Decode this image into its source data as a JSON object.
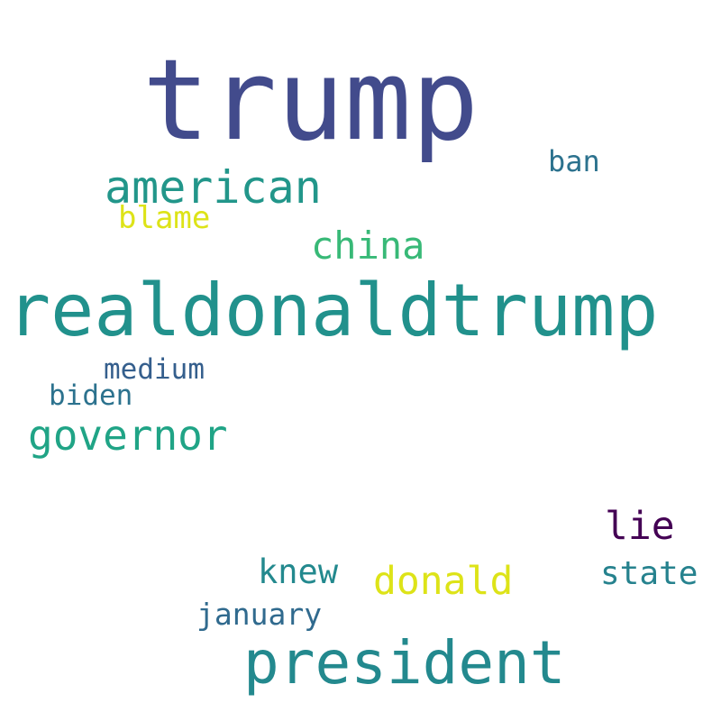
{
  "words": [
    {
      "key": "trump",
      "text": "trump",
      "color": "#424b8c"
    },
    {
      "key": "ban",
      "text": "ban",
      "color": "#2c728e"
    },
    {
      "key": "american",
      "text": "american",
      "color": "#22968a"
    },
    {
      "key": "blame",
      "text": "blame",
      "color": "#dde318"
    },
    {
      "key": "china",
      "text": "china",
      "color": "#38b977"
    },
    {
      "key": "realdonaldtrump",
      "text": "realdonaldtrump",
      "color": "#21918c"
    },
    {
      "key": "medium",
      "text": "medium",
      "color": "#355f8d"
    },
    {
      "key": "biden",
      "text": "biden",
      "color": "#2c728e"
    },
    {
      "key": "governor",
      "text": "governor",
      "color": "#20a486"
    },
    {
      "key": "lie",
      "text": "lie",
      "color": "#440154"
    },
    {
      "key": "knew",
      "text": "knew",
      "color": "#23898e"
    },
    {
      "key": "donald",
      "text": "donald",
      "color": "#dde318"
    },
    {
      "key": "state",
      "text": "state",
      "color": "#26828e"
    },
    {
      "key": "january",
      "text": "january",
      "color": "#306a8e"
    },
    {
      "key": "president",
      "text": "president",
      "color": "#23898e"
    }
  ]
}
